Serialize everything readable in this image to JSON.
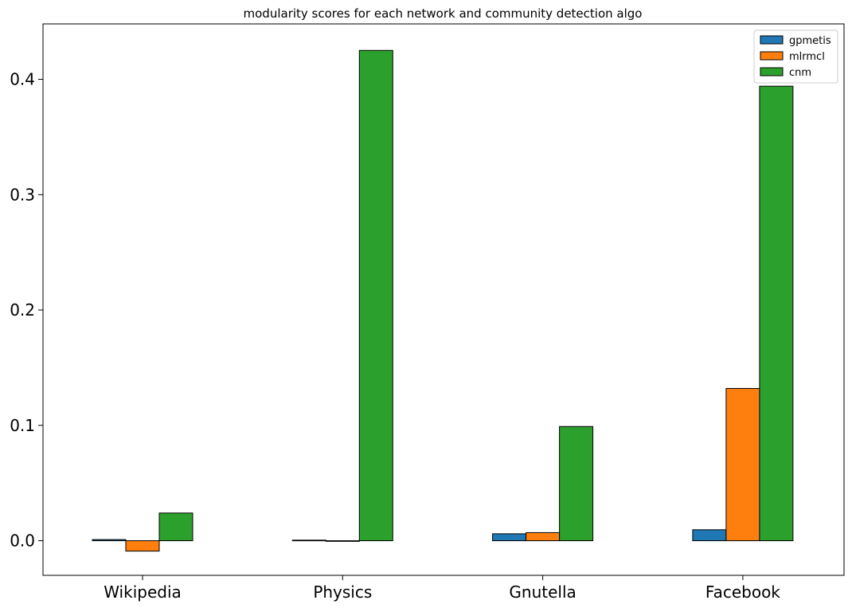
{
  "chart_data": {
    "type": "bar",
    "title": "modularity scores for each network and community detection algo",
    "xlabel": "",
    "ylabel": "",
    "categories": [
      "Wikipedia",
      "Physics",
      "Gnutella",
      "Facebook"
    ],
    "series": [
      {
        "name": "gpmetis",
        "color": "#1f77b4",
        "values": [
          0.001,
          0.0005,
          0.006,
          0.0095
        ]
      },
      {
        "name": "mlrmcl",
        "color": "#ff7f0e",
        "values": [
          -0.009,
          0.0,
          0.007,
          0.132
        ]
      },
      {
        "name": "cnm",
        "color": "#2ca02c",
        "values": [
          0.024,
          0.425,
          0.099,
          0.394
        ]
      }
    ],
    "ylim": [
      -0.03,
      0.448
    ],
    "yticks": [
      0.0,
      0.1,
      0.2,
      0.3,
      0.4
    ],
    "ytick_labels": [
      "0.0",
      "0.1",
      "0.2",
      "0.3",
      "0.4"
    ],
    "grid": false,
    "legend_position": "top-right"
  }
}
